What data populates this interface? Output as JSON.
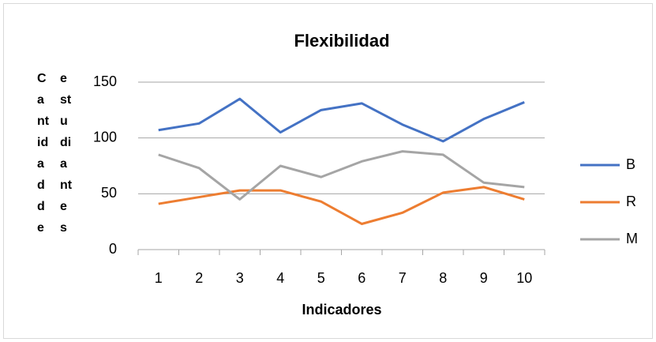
{
  "chart_data": {
    "type": "line",
    "title": "Flexibilidad",
    "x_label": "Indicadores",
    "y_label": "Cantidad de estudiantes",
    "categories": [
      "1",
      "2",
      "3",
      "4",
      "5",
      "6",
      "7",
      "8",
      "9",
      "10"
    ],
    "series": [
      {
        "name": "B",
        "color": "#4472c4",
        "values": [
          107,
          113,
          135,
          105,
          125,
          131,
          112,
          97,
          117,
          132
        ]
      },
      {
        "name": "R",
        "color": "#ed7d31",
        "values": [
          41,
          47,
          53,
          53,
          43,
          23,
          33,
          51,
          56,
          45
        ]
      },
      {
        "name": "M",
        "color": "#a5a5a5",
        "values": [
          85,
          73,
          45,
          75,
          65,
          79,
          88,
          85,
          60,
          56
        ]
      }
    ],
    "ylim": [
      0,
      150
    ],
    "yticks": [
      0,
      50,
      100,
      150
    ],
    "grid": true,
    "legend": "right"
  }
}
